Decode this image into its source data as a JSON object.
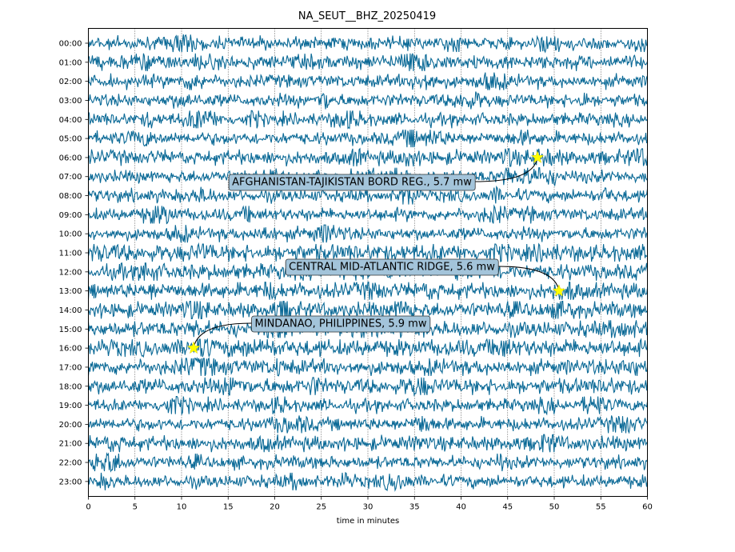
{
  "chart_data": {
    "type": "line",
    "title": "NA_SEUT__BHZ_20250419",
    "xlabel": "time in minutes",
    "ylabel": "",
    "xlim": [
      0,
      60
    ],
    "x_ticks": [
      0,
      5,
      10,
      15,
      20,
      25,
      30,
      35,
      40,
      45,
      50,
      55,
      60
    ],
    "grid": {
      "x": "dotted",
      "y": "none"
    },
    "trace_color": "#0a6996",
    "marker_color": "#ffff00",
    "rows": [
      "00:00",
      "01:00",
      "02:00",
      "03:00",
      "04:00",
      "05:00",
      "06:00",
      "07:00",
      "08:00",
      "09:00",
      "10:00",
      "11:00",
      "12:00",
      "13:00",
      "14:00",
      "15:00",
      "16:00",
      "17:00",
      "18:00",
      "19:00",
      "20:00",
      "21:00",
      "22:00",
      "23:00"
    ],
    "events": [
      {
        "label": "AFGHANISTAN-TAJIKISTAN BORD REG., 5.7 mw",
        "row": "06:00",
        "minute": 48.2
      },
      {
        "label": "CENTRAL MID-ATLANTIC RIDGE, 5.6 mw",
        "row": "13:00",
        "minute": 50.5
      },
      {
        "label": "MINDANAO, PHILIPPINES, 5.9 mw",
        "row": "16:00",
        "minute": 11.3
      }
    ]
  }
}
